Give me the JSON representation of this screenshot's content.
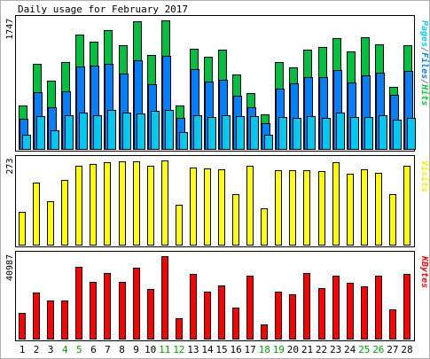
{
  "chart_data": {
    "type": "bar",
    "title": "Daily usage for February 2017",
    "categories": [
      "1",
      "2",
      "3",
      "4",
      "5",
      "6",
      "7",
      "8",
      "9",
      "10",
      "11",
      "12",
      "13",
      "14",
      "15",
      "16",
      "17",
      "18",
      "19",
      "20",
      "21",
      "22",
      "23",
      "24",
      "25",
      "26",
      "27",
      "28"
    ],
    "weekend_days": [
      "4",
      "5",
      "11",
      "12",
      "18",
      "19",
      "25",
      "26"
    ],
    "panels": [
      {
        "id": "pages-files-hits",
        "ylabel_max": "1747",
        "ymax": 1747,
        "legend": [
          {
            "text": "Pages",
            "color": "#00ccff"
          },
          {
            "text": "/",
            "color": "#808080"
          },
          {
            "text": "Files",
            "color": "#0080ff"
          },
          {
            "text": "/",
            "color": "#808080"
          },
          {
            "text": "Hits",
            "color": "#00cc33"
          }
        ],
        "series": [
          {
            "name": "Hits",
            "color": "#00c040",
            "values": [
              594,
              1156,
              924,
              1176,
              1555,
              1452,
              1618,
              1413,
              1739,
              1283,
              1747,
              594,
              1356,
              1249,
              1344,
              1017,
              761,
              473,
              1176,
              1111,
              1344,
              1385,
              1507,
              1324,
              1513,
              1422,
              846,
              1405
            ]
          },
          {
            "name": "Files",
            "color": "#0080ff",
            "values": [
              407,
              776,
              568,
              778,
              1125,
              1134,
              1152,
              1029,
              1210,
              883,
              1264,
              416,
              1080,
              912,
              939,
              720,
              570,
              345,
              825,
              897,
              970,
              980,
              1072,
              902,
              1004,
              1031,
              732,
              1063
            ]
          },
          {
            "name": "Pages",
            "color": "#00c8f0",
            "values": [
              194,
              440,
              248,
              459,
              494,
              458,
              527,
              495,
              482,
              519,
              532,
              226,
              459,
              435,
              461,
              444,
              446,
              194,
              432,
              420,
              449,
              425,
              493,
              437,
              435,
              457,
              402,
              424
            ]
          }
        ]
      },
      {
        "id": "visits",
        "ylabel_max": "273",
        "ymax": 273,
        "legend": [
          {
            "text": "Visits",
            "color": "#f0f000"
          }
        ],
        "series": [
          {
            "name": "Visits",
            "color": "#ffff00",
            "values": [
              105,
              200,
              142,
              210,
              256,
              262,
              266,
              270,
              270,
              257,
              273,
              130,
              250,
              247,
              245,
              163,
              255,
              118,
              240,
              240,
              240,
              238,
              267,
              230,
              245,
              233,
              165,
              255
            ]
          }
        ]
      },
      {
        "id": "kbytes",
        "ylabel_max": "40987",
        "ymax": 40987,
        "legend": [
          {
            "text": "KBytes",
            "color": "#ff0000"
          }
        ],
        "series": [
          {
            "name": "KBytes",
            "color": "#ff0000",
            "values": [
              12800,
              22800,
              18900,
              18900,
              35900,
              28000,
              32800,
              28200,
              35400,
              24600,
              40987,
              10300,
              32200,
              23500,
              26400,
              15500,
              31500,
              7000,
              23400,
              21900,
              32500,
              25100,
              31200,
              27700,
              25900,
              31200,
              14600,
              32200
            ]
          }
        ]
      }
    ]
  }
}
